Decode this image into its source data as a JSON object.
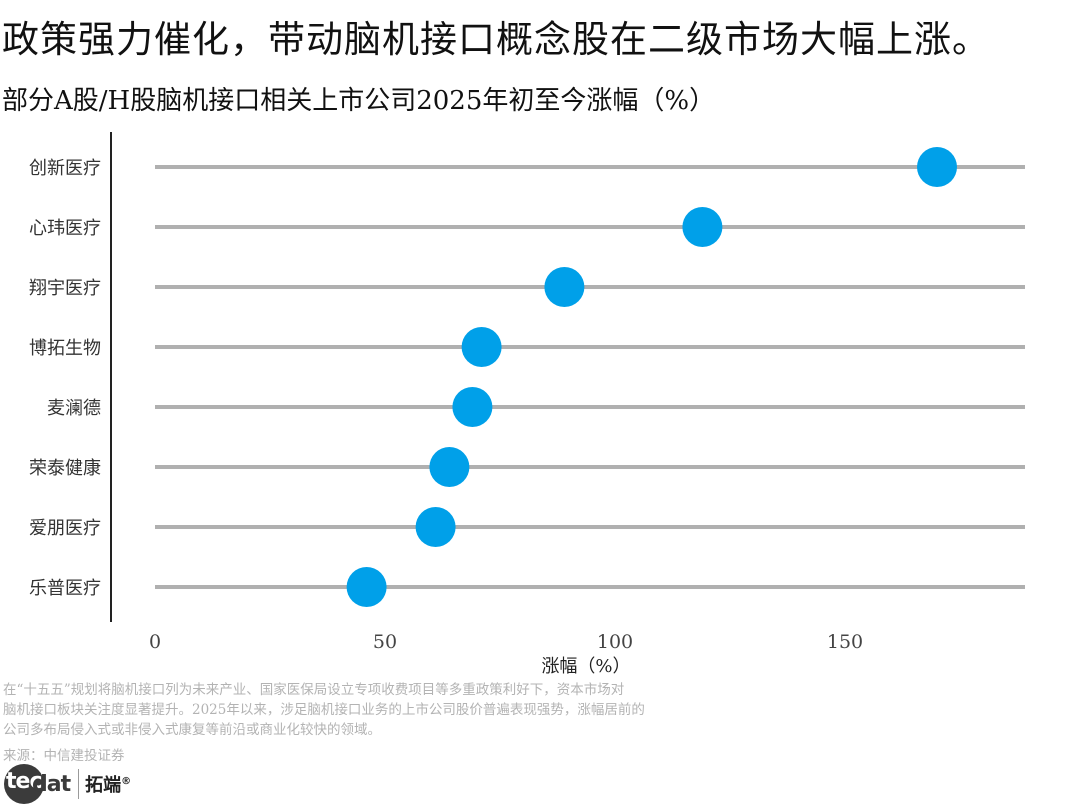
{
  "title": "政策强力催化，带动脑机接口概念股在二级市场大幅上涨。",
  "subtitle": "部分A股/H股脑机接口相关上市公司2025年初至今涨幅（%）",
  "chart_data": {
    "type": "dot",
    "orientation": "horizontal",
    "categories": [
      "创新医疗",
      "心玮医疗",
      "翔宇医疗",
      "博拓生物",
      "麦澜德",
      "荣泰健康",
      "爱朋医疗",
      "乐普医疗"
    ],
    "values": [
      170,
      119,
      89,
      71,
      69,
      64,
      61,
      46
    ],
    "xlabel": "涨幅（%）",
    "xlim": [
      0,
      190
    ],
    "xticks": [
      "0",
      "50",
      "100",
      "150"
    ],
    "xtick_values": [
      0,
      50,
      100,
      150
    ],
    "grid": false,
    "legend": "none",
    "colors": {
      "dot": "#00a0e9",
      "line": "#b0b0b0",
      "axis": "#222222",
      "tick_text": "#444444"
    }
  },
  "note": [
    "在“十五五”规划将脑机接口列为未来产业、国家医保局设立专项收费项目等多重政策利好下，资本市场对",
    "脑机接口板块关注度显著提升。2025年以来，涉足脑机接口业务的上市公司股价普遍表现强势，涨幅居前的",
    "公司多布局侵入式或非侵入式康复等前沿或商业化较快的领域。"
  ],
  "source": "来源：中信建投证券",
  "logo": {
    "tec": "tec",
    "dat": "dat",
    "cn": "拓端",
    "mark": "®"
  }
}
